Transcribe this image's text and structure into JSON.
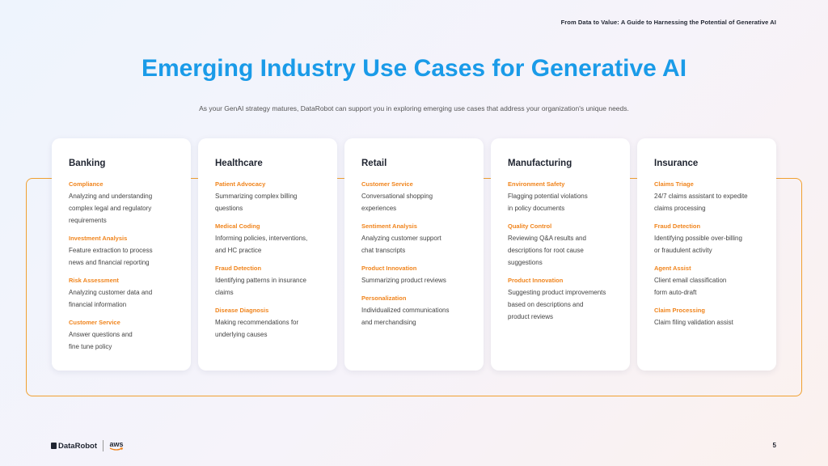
{
  "header": {
    "doc_title": "From Data to Value: A Guide to Harnessing the Potential of Generative AI"
  },
  "main": {
    "title": "Emerging Industry Use Cases for Generative AI",
    "subtitle": "As your GenAI strategy matures, DataRobot can support you in exploring emerging use cases that address your organization's unique needs."
  },
  "cards": [
    {
      "title": "Banking",
      "items": [
        {
          "head": "Compliance",
          "desc": [
            "Analyzing and understanding",
            "complex legal and regulatory",
            "requirements"
          ]
        },
        {
          "head": "Investment Analysis",
          "desc": [
            "Feature extraction to process",
            "news and financial reporting"
          ]
        },
        {
          "head": "Risk Assessment",
          "desc": [
            "Analyzing customer data and",
            "financial information"
          ]
        },
        {
          "head": "Customer Service",
          "desc": [
            "Answer questions and",
            "fine tune policy"
          ]
        }
      ]
    },
    {
      "title": "Healthcare",
      "items": [
        {
          "head": "Patient Advocacy",
          "desc": [
            "Summarizing complex billing",
            "questions"
          ]
        },
        {
          "head": "Medical Coding",
          "desc": [
            "Informing policies, interventions,",
            "and HC practice"
          ]
        },
        {
          "head": "Fraud Detection",
          "desc": [
            "Identifying patterns in insurance",
            "claims"
          ]
        },
        {
          "head": "Disease Diagnosis",
          "desc": [
            "Making recommendations for",
            "underlying causes"
          ]
        }
      ]
    },
    {
      "title": "Retail",
      "items": [
        {
          "head": "Customer Service",
          "desc": [
            "Conversational shopping",
            "experiences"
          ]
        },
        {
          "head": "Sentiment Analysis",
          "desc": [
            "Analyzing customer support",
            "chat transcripts"
          ]
        },
        {
          "head": "Product Innovation",
          "desc": [
            "Summarizing product reviews"
          ]
        },
        {
          "head": "Personalization",
          "desc": [
            "Individualized communications",
            "and merchandising"
          ]
        }
      ]
    },
    {
      "title": "Manufacturing",
      "items": [
        {
          "head": "Environment Safety",
          "desc": [
            "Flagging potential violations",
            "in policy documents"
          ]
        },
        {
          "head": "Quality Control",
          "desc": [
            "Reviewing Q&A results and",
            "descriptions for root cause",
            "suggestions"
          ]
        },
        {
          "head": "Product Innovation",
          "desc": [
            "Suggesting product improvements",
            "based on descriptions and",
            "product reviews"
          ]
        }
      ]
    },
    {
      "title": "Insurance",
      "items": [
        {
          "head": "Claims Triage",
          "desc": [
            "24/7 claims assistant to expedite",
            "claims processing"
          ]
        },
        {
          "head": "Fraud Detection",
          "desc": [
            "Identifying possible over-billing",
            "or fraudulent activity"
          ]
        },
        {
          "head": "Agent Assist",
          "desc": [
            "Client email classification",
            "form auto-draft"
          ]
        },
        {
          "head": "Claim Processing",
          "desc": [
            "Claim filing validation assist"
          ]
        }
      ]
    }
  ],
  "footer": {
    "brand": "DataRobot",
    "partner": "aws",
    "page_number": "5",
    "icons": [
      "datarobot-logo-icon",
      "aws-logo-icon"
    ]
  },
  "colors": {
    "title_blue": "#1a9be8",
    "accent_orange": "#f0841c",
    "frame_orange": "#f0a030",
    "text_dark": "#1f2430"
  }
}
